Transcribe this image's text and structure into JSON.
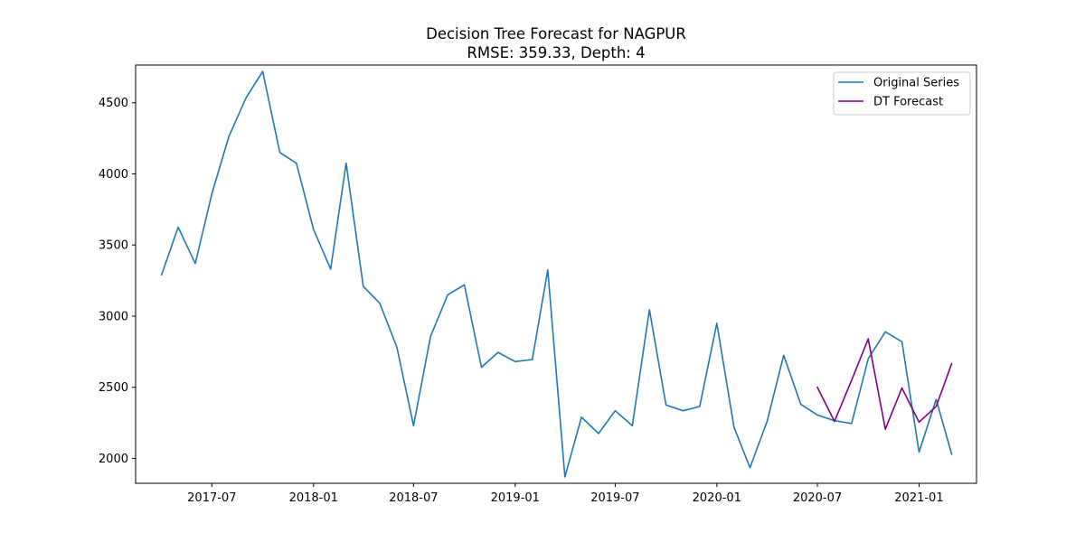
{
  "chart_data": {
    "type": "line",
    "title": "Decision Tree Forecast for NAGPUR",
    "subtitle": "RMSE: 359.33, Depth: 4",
    "xlabel": "",
    "ylabel": "",
    "x_tick_labels": [
      "2017-07",
      "2018-01",
      "2018-07",
      "2019-01",
      "2019-07",
      "2020-01",
      "2020-07",
      "2021-01"
    ],
    "y_ticks": [
      2000,
      2500,
      3000,
      3500,
      4000,
      4500
    ],
    "xlim": [
      "2017-02-13",
      "2021-04-15"
    ],
    "ylim": [
      1825,
      4765
    ],
    "grid": false,
    "legend_position": "top-right",
    "series": [
      {
        "name": "Original Series",
        "color": "#1f77b4",
        "x": [
          "2017-04-01",
          "2017-05-01",
          "2017-06-01",
          "2017-07-01",
          "2017-08-01",
          "2017-09-01",
          "2017-10-01",
          "2017-11-01",
          "2017-12-01",
          "2018-01-01",
          "2018-02-01",
          "2018-03-01",
          "2018-04-01",
          "2018-05-01",
          "2018-06-01",
          "2018-07-01",
          "2018-08-01",
          "2018-09-01",
          "2018-10-01",
          "2018-11-01",
          "2018-12-01",
          "2019-01-01",
          "2019-02-01",
          "2019-03-01",
          "2019-04-01",
          "2019-05-01",
          "2019-06-01",
          "2019-07-01",
          "2019-08-01",
          "2019-09-01",
          "2019-10-01",
          "2019-11-01",
          "2019-12-01",
          "2020-01-01",
          "2020-02-01",
          "2020-03-01",
          "2020-04-01",
          "2020-05-01",
          "2020-06-01",
          "2020-07-01",
          "2020-08-01",
          "2020-09-01",
          "2020-10-01",
          "2020-11-01",
          "2020-12-01",
          "2021-01-01",
          "2021-02-01",
          "2021-03-01"
        ],
        "values": [
          3290,
          3625,
          3370,
          3860,
          4265,
          4535,
          4720,
          4150,
          4075,
          3610,
          3330,
          4075,
          3210,
          3090,
          2780,
          2230,
          2860,
          3150,
          3220,
          2640,
          2745,
          2680,
          2695,
          3325,
          1870,
          2290,
          2175,
          2335,
          2230,
          3045,
          2375,
          2335,
          2365,
          2950,
          2220,
          1935,
          2260,
          2725,
          2380,
          2305,
          2265,
          2245,
          2700,
          2890,
          2820,
          2045,
          2415,
          2030
        ]
      },
      {
        "name": "DT Forecast",
        "color": "#800080",
        "x": [
          "2020-07-01",
          "2020-08-01",
          "2020-09-01",
          "2020-10-01",
          "2020-11-01",
          "2020-12-01",
          "2021-01-01",
          "2021-02-01",
          "2021-03-01"
        ],
        "values": [
          2500,
          2260,
          2550,
          2840,
          2205,
          2495,
          2255,
          2365,
          2665
        ]
      }
    ]
  }
}
